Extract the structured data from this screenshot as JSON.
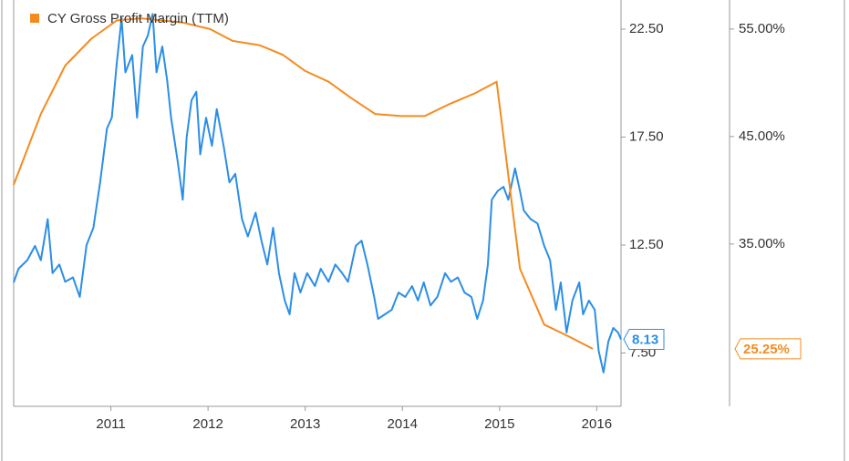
{
  "chart_data": {
    "type": "line",
    "xlim": [
      2010.0,
      2016.25
    ],
    "xticks": [
      2011,
      2012,
      2013,
      2014,
      2015,
      2016
    ],
    "ylim": [
      5.03,
      23.85
    ],
    "yticks": [
      {
        "value": 22.5,
        "label": "22.50"
      },
      {
        "value": 17.5,
        "label": "17.50"
      },
      {
        "value": 12.5,
        "label": "12.50"
      },
      {
        "value": 7.5,
        "label": "7.50"
      }
    ],
    "y2lim": [
      19.9,
      57.7
    ],
    "y2ticks": [
      {
        "value": 55,
        "label": "55.00%"
      },
      {
        "value": 45,
        "label": "45.00%"
      },
      {
        "value": 35,
        "label": "35.00%"
      }
    ],
    "legend": "top-left",
    "series": [
      {
        "color": "#2b8ee6",
        "x": [
          2010.0,
          2010.05,
          2010.14,
          2010.22,
          2010.28,
          2010.35,
          2010.4,
          2010.47,
          2010.53,
          2010.61,
          2010.68,
          2010.75,
          2010.82,
          2010.89,
          2010.96,
          2011.01,
          2011.06,
          2011.11,
          2011.15,
          2011.22,
          2011.27,
          2011.33,
          2011.38,
          2011.43,
          2011.47,
          2011.53,
          2011.58,
          2011.62,
          2011.69,
          2011.74,
          2011.78,
          2011.83,
          2011.88,
          2011.92,
          2011.98,
          2012.04,
          2012.09,
          2012.16,
          2012.22,
          2012.28,
          2012.35,
          2012.41,
          2012.49,
          2012.55,
          2012.61,
          2012.67,
          2012.73,
          2012.79,
          2012.84,
          2012.89,
          2012.95,
          2013.02,
          2013.1,
          2013.16,
          2013.24,
          2013.31,
          2013.38,
          2013.44,
          2013.52,
          2013.58,
          2013.64,
          2013.71,
          2013.75,
          2013.82,
          2013.89,
          2013.96,
          2014.03,
          2014.1,
          2014.16,
          2014.22,
          2014.29,
          2014.36,
          2014.44,
          2014.5,
          2014.57,
          2014.64,
          2014.71,
          2014.77,
          2014.83,
          2014.88,
          2014.92,
          2014.98,
          2015.04,
          2015.09,
          2015.16,
          2015.21,
          2015.25,
          2015.32,
          2015.39,
          2015.46,
          2015.52,
          2015.58,
          2015.63,
          2015.69,
          2015.75,
          2015.82,
          2015.86,
          2015.92,
          2015.98,
          2016.02,
          2016.07,
          2016.12,
          2016.17,
          2016.22,
          2016.25
        ],
        "values": [
          10.77,
          11.4,
          11.8,
          12.46,
          11.8,
          13.7,
          11.2,
          11.6,
          10.8,
          11.0,
          10.1,
          12.5,
          13.3,
          15.4,
          17.9,
          18.4,
          20.9,
          23.0,
          20.5,
          21.3,
          18.4,
          21.7,
          22.2,
          23.2,
          20.5,
          21.7,
          20.1,
          18.4,
          16.3,
          14.6,
          17.5,
          19.2,
          19.6,
          16.7,
          18.4,
          17.1,
          18.8,
          17.1,
          15.4,
          15.8,
          13.7,
          12.9,
          14.0,
          12.7,
          11.6,
          13.3,
          11.2,
          9.93,
          9.29,
          11.2,
          10.3,
          11.2,
          10.6,
          11.4,
          10.8,
          11.6,
          11.2,
          10.8,
          12.46,
          12.7,
          11.6,
          10.1,
          9.08,
          9.29,
          9.5,
          10.3,
          10.1,
          10.6,
          9.93,
          10.77,
          9.7,
          10.1,
          11.2,
          10.8,
          11.0,
          10.3,
          10.1,
          9.08,
          9.93,
          11.6,
          14.6,
          15.0,
          15.2,
          14.6,
          16.05,
          15.0,
          14.1,
          13.7,
          13.5,
          12.46,
          11.8,
          9.5,
          10.77,
          8.45,
          9.93,
          10.77,
          9.29,
          9.93,
          9.5,
          7.6,
          6.6,
          8.03,
          8.66,
          8.45,
          8.13
        ]
      },
      {
        "name": "CY Gross Profit Margin (TTM)",
        "color": "#f58b1f",
        "axis": "y2",
        "x": [
          2010.0,
          2010.28,
          2010.53,
          2010.8,
          2011.06,
          2011.31,
          2011.74,
          2012.02,
          2012.25,
          2012.53,
          2012.77,
          2013.0,
          2013.24,
          2013.47,
          2013.72,
          2013.99,
          2014.23,
          2014.48,
          2014.74,
          2014.97,
          2015.21,
          2015.46,
          2015.69,
          2015.96
        ],
        "values": [
          40.5,
          47.1,
          51.6,
          54.1,
          55.8,
          56.0,
          55.6,
          55.0,
          53.9,
          53.5,
          52.6,
          51.1,
          50.1,
          48.6,
          47.1,
          46.9,
          46.9,
          48.0,
          49.0,
          50.1,
          32.7,
          27.5,
          26.5,
          25.25
        ],
        "value_labels": [
          null,
          null,
          null,
          null,
          null,
          null,
          null,
          null,
          null,
          null,
          null,
          null,
          null,
          null,
          null,
          null,
          null,
          null,
          null,
          null,
          null,
          null,
          null,
          "25.25%"
        ]
      }
    ]
  }
}
